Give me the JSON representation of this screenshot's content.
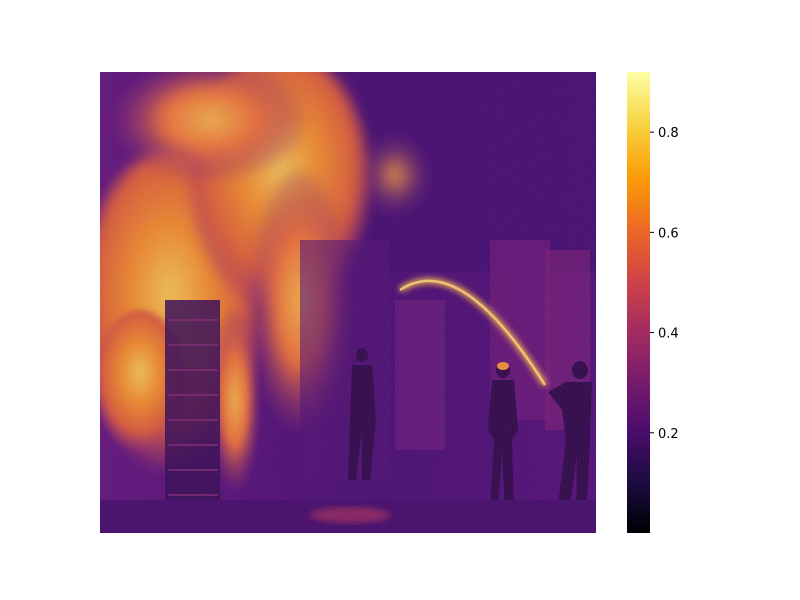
{
  "chart_data": {
    "type": "heatmap",
    "colormap": "inferno",
    "description_free": true,
    "colorbar": {
      "range": [
        0.0,
        0.92
      ],
      "ticks": [
        {
          "value": 0.2,
          "label": "0.2"
        },
        {
          "value": 0.4,
          "label": "0.4"
        },
        {
          "value": 0.6,
          "label": "0.6"
        },
        {
          "value": 0.8,
          "label": "0.8"
        }
      ]
    },
    "title": "",
    "xlabel": "",
    "ylabel": ""
  },
  "colors": {
    "inferno_stops": [
      "#000004",
      "#1b0c41",
      "#4a0c6b",
      "#781c6d",
      "#a52c60",
      "#cf4446",
      "#ed6925",
      "#fb9b06",
      "#f7d13d",
      "#fcffa4"
    ]
  }
}
